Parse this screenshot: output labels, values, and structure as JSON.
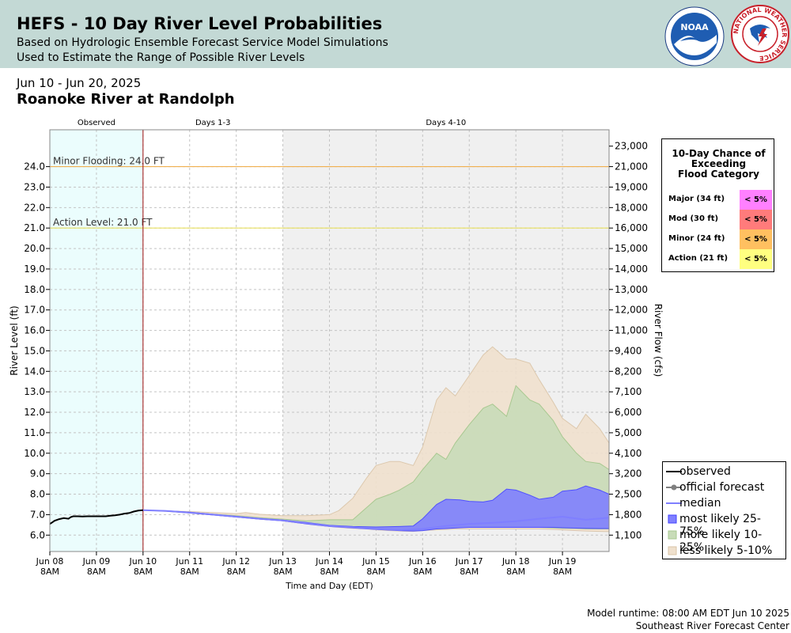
{
  "header": {
    "title": "HEFS - 10 Day River Level Probabilities",
    "subtitle1": "Based on Hydrologic Ensemble Forecast Service Model Simulations",
    "subtitle2": "Used to Estimate the Range of Possible River Levels",
    "noaa_logo_text": "NOAA",
    "nws_logo_text": "NATIONAL WEATHER SERVICE"
  },
  "date_range": "Jun 10 - Jun 20, 2025",
  "station": "Roanoke River at Randolph",
  "footer": {
    "runtime": "Model runtime: 08:00 AM EDT Jun 10 2025",
    "center": "Southeast River Forecast Center"
  },
  "flood_box": {
    "title_lines": [
      "10-Day Chance of",
      "Exceeding",
      "Flood Category"
    ],
    "rows": [
      {
        "label": "Major (34 ft)",
        "value": "< 5%",
        "color": "#ff80ff"
      },
      {
        "label": "Mod (30 ft)",
        "value": "< 5%",
        "color": "#ff7b7b"
      },
      {
        "label": "Minor (24 ft)",
        "value": "< 5%",
        "color": "#ffc060"
      },
      {
        "label": "Action (21 ft)",
        "value": "< 5%",
        "color": "#ffff80"
      }
    ]
  },
  "legend": {
    "items": [
      {
        "key": "observed",
        "label": "observed",
        "kind": "line",
        "color": "#000000"
      },
      {
        "key": "official",
        "label": "official forecast",
        "kind": "dotline",
        "color": "#808080"
      },
      {
        "key": "median",
        "label": "median",
        "kind": "line",
        "color": "#7f7fff"
      },
      {
        "key": "band_25_75",
        "label": "most likely 25-75%",
        "kind": "box",
        "color": "#8080ff",
        "border": "#4040ff"
      },
      {
        "key": "band_10_25",
        "label": "more likely 10-25%",
        "kind": "box",
        "color": "#c8dcb8",
        "border": "#a8c890"
      },
      {
        "key": "band_5_10",
        "label": "less likely 5-10%",
        "kind": "box",
        "color": "#efe0cd",
        "border": "#d8c4a8"
      }
    ]
  },
  "chart_data": {
    "type": "area",
    "xlabel": "Time and Day (EDT)",
    "ylabel": "River Level (ft)",
    "ylabel2": "River Flow (cfs)",
    "ylim": [
      5.2,
      25.8
    ],
    "xlim": [
      0,
      12
    ],
    "yticks": [
      6.0,
      7.0,
      8.0,
      9.0,
      10.0,
      11.0,
      12.0,
      13.0,
      14.0,
      15.0,
      16.0,
      17.0,
      18.0,
      19.0,
      20.0,
      21.0,
      22.0,
      23.0,
      24.0
    ],
    "ytick_labels": [
      "6.0",
      "7.0",
      "8.0",
      "9.0",
      "10.0",
      "11.0",
      "12.0",
      "13.0",
      "14.0",
      "15.0",
      "16.0",
      "17.0",
      "18.0",
      "19.0",
      "20.0",
      "21.0",
      "22.0",
      "23.0",
      "24.0"
    ],
    "flow_ticks": [
      {
        "stage": 6.0,
        "label": "1,100"
      },
      {
        "stage": 7.0,
        "label": "1,800"
      },
      {
        "stage": 8.0,
        "label": "2,500"
      },
      {
        "stage": 9.0,
        "label": "3,200"
      },
      {
        "stage": 10.0,
        "label": "4,100"
      },
      {
        "stage": 11.0,
        "label": "5,000"
      },
      {
        "stage": 12.0,
        "label": "6,000"
      },
      {
        "stage": 13.0,
        "label": "7,100"
      },
      {
        "stage": 14.0,
        "label": "8,200"
      },
      {
        "stage": 15.0,
        "label": "9,400"
      },
      {
        "stage": 16.0,
        "label": "11,000"
      },
      {
        "stage": 17.0,
        "label": "12,000"
      },
      {
        "stage": 18.0,
        "label": "13,000"
      },
      {
        "stage": 19.0,
        "label": "14,000"
      },
      {
        "stage": 20.0,
        "label": "15,000"
      },
      {
        "stage": 21.0,
        "label": "16,000"
      },
      {
        "stage": 22.0,
        "label": "18,000"
      },
      {
        "stage": 23.0,
        "label": "19,000"
      },
      {
        "stage": 24.0,
        "label": "21,000"
      },
      {
        "stage": 25.0,
        "label": "23,000"
      }
    ],
    "xticks": [
      {
        "x": 0,
        "day": "Jun 08",
        "time": "8AM"
      },
      {
        "x": 1,
        "day": "Jun 09",
        "time": "8AM"
      },
      {
        "x": 2,
        "day": "Jun 10",
        "time": "8AM"
      },
      {
        "x": 3,
        "day": "Jun 11",
        "time": "8AM"
      },
      {
        "x": 4,
        "day": "Jun 12",
        "time": "8AM"
      },
      {
        "x": 5,
        "day": "Jun 13",
        "time": "8AM"
      },
      {
        "x": 6,
        "day": "Jun 14",
        "time": "8AM"
      },
      {
        "x": 7,
        "day": "Jun 15",
        "time": "8AM"
      },
      {
        "x": 8,
        "day": "Jun 16",
        "time": "8AM"
      },
      {
        "x": 9,
        "day": "Jun 17",
        "time": "8AM"
      },
      {
        "x": 10,
        "day": "Jun 18",
        "time": "8AM"
      },
      {
        "x": 11,
        "day": "Jun 19",
        "time": "8AM"
      }
    ],
    "regions": [
      {
        "label": "Observed",
        "x0": 0,
        "x1": 2,
        "color": "#ebfdfd"
      },
      {
        "label": "Days 1-3",
        "x0": 2,
        "x1": 5,
        "color": "#ffffff"
      },
      {
        "label": "Days 4-10",
        "x0": 5,
        "x1": 12,
        "color": "#f0f0f0"
      }
    ],
    "now_x": 2,
    "thresholds": [
      {
        "label": "Minor Flooding: 24.0 FT",
        "value": 24.0,
        "color": "#f0b050"
      },
      {
        "label": "Action Level: 21.0 FT",
        "value": 21.0,
        "color": "#e8e060"
      }
    ],
    "observed": {
      "x": [
        0,
        0.05,
        0.1,
        0.2,
        0.3,
        0.4,
        0.45,
        0.5,
        0.6,
        0.7,
        0.8,
        0.9,
        1.0,
        1.1,
        1.2,
        1.3,
        1.4,
        1.5,
        1.6,
        1.7,
        1.8,
        1.9,
        2.0
      ],
      "y": [
        6.55,
        6.62,
        6.7,
        6.78,
        6.83,
        6.8,
        6.88,
        6.92,
        6.92,
        6.91,
        6.92,
        6.92,
        6.92,
        6.92,
        6.92,
        6.95,
        6.97,
        7.0,
        7.05,
        7.08,
        7.15,
        7.2,
        7.22
      ]
    },
    "median": {
      "x": [
        2.0,
        2.5,
        3.0,
        3.5,
        4.0,
        4.5,
        5.0,
        5.5,
        6.0,
        6.5,
        7.0,
        7.5,
        8.0,
        8.5,
        9.0,
        9.5,
        10.0,
        10.5,
        11.0,
        11.5,
        12.0
      ],
      "y": [
        7.22,
        7.18,
        7.1,
        7.0,
        6.9,
        6.8,
        6.72,
        6.58,
        6.45,
        6.38,
        6.3,
        6.25,
        6.3,
        6.45,
        6.55,
        6.6,
        6.68,
        6.8,
        6.9,
        6.75,
        6.85
      ]
    },
    "series": [
      {
        "name": "less likely 5-10%",
        "x": [
          2.0,
          2.5,
          3.0,
          3.5,
          4.0,
          4.2,
          4.5,
          5.0,
          5.5,
          6.0,
          6.2,
          6.5,
          6.8,
          7.0,
          7.3,
          7.5,
          7.8,
          8.0,
          8.3,
          8.5,
          8.7,
          9.0,
          9.3,
          9.5,
          9.8,
          10.0,
          10.3,
          10.5,
          10.8,
          11.0,
          11.3,
          11.5,
          11.8,
          12.0
        ],
        "upper": [
          7.22,
          7.18,
          7.15,
          7.1,
          7.05,
          7.1,
          7.02,
          6.95,
          6.95,
          7.0,
          7.2,
          7.8,
          8.8,
          9.4,
          9.6,
          9.6,
          9.4,
          10.3,
          12.6,
          13.2,
          12.8,
          13.8,
          14.8,
          15.2,
          14.6,
          14.6,
          14.4,
          13.6,
          12.5,
          11.7,
          11.2,
          11.9,
          11.2,
          10.5
        ],
        "lower": [
          7.22,
          7.16,
          7.08,
          6.98,
          6.88,
          6.85,
          6.78,
          6.7,
          6.55,
          6.42,
          6.38,
          6.33,
          6.3,
          6.26,
          6.22,
          6.2,
          6.18,
          6.22,
          6.26,
          6.28,
          6.3,
          6.3,
          6.3,
          6.3,
          6.3,
          6.3,
          6.3,
          6.3,
          6.28,
          6.25,
          6.22,
          6.2,
          6.18,
          6.17
        ],
        "color": "#efe0cd",
        "border": "#dcc8ad"
      },
      {
        "name": "more likely 10-25%",
        "x": [
          2.0,
          2.5,
          3.0,
          3.5,
          4.0,
          4.5,
          5.0,
          5.5,
          6.0,
          6.5,
          7.0,
          7.3,
          7.5,
          7.8,
          8.0,
          8.3,
          8.5,
          8.7,
          9.0,
          9.3,
          9.5,
          9.8,
          10.0,
          10.3,
          10.5,
          10.8,
          11.0,
          11.3,
          11.5,
          11.8,
          12.0
        ],
        "upper": [
          7.22,
          7.17,
          7.1,
          7.03,
          6.95,
          6.85,
          6.78,
          6.7,
          6.75,
          6.75,
          7.75,
          8.0,
          8.2,
          8.6,
          9.2,
          10.0,
          9.7,
          10.5,
          11.4,
          12.2,
          12.4,
          11.8,
          13.3,
          12.6,
          12.4,
          11.6,
          10.8,
          10.0,
          9.6,
          9.5,
          9.2
        ],
        "lower": [
          7.22,
          7.17,
          7.09,
          7.0,
          6.9,
          6.8,
          6.72,
          6.58,
          6.45,
          6.38,
          6.3,
          6.26,
          6.24,
          6.22,
          6.25,
          6.32,
          6.35,
          6.38,
          6.38,
          6.38,
          6.38,
          6.38,
          6.38,
          6.38,
          6.38,
          6.35,
          6.33,
          6.32,
          6.3,
          6.3,
          6.3
        ],
        "color": "#c8dcb8",
        "border": "#a8c890"
      },
      {
        "name": "most likely 25-75%",
        "x": [
          2.0,
          2.5,
          3.0,
          3.5,
          4.0,
          4.5,
          5.0,
          5.5,
          6.0,
          6.5,
          7.0,
          7.5,
          7.8,
          8.0,
          8.3,
          8.5,
          8.8,
          9.0,
          9.3,
          9.5,
          9.8,
          10.0,
          10.3,
          10.5,
          10.8,
          11.0,
          11.3,
          11.5,
          11.8,
          12.0
        ],
        "upper": [
          7.22,
          7.19,
          7.12,
          7.02,
          6.92,
          6.82,
          6.74,
          6.62,
          6.48,
          6.42,
          6.4,
          6.42,
          6.45,
          6.8,
          7.5,
          7.75,
          7.72,
          7.65,
          7.62,
          7.7,
          8.25,
          8.2,
          7.95,
          7.75,
          7.85,
          8.15,
          8.22,
          8.4,
          8.2,
          8.0
        ],
        "lower": [
          7.22,
          7.17,
          7.08,
          6.98,
          6.88,
          6.78,
          6.7,
          6.55,
          6.42,
          6.35,
          6.28,
          6.22,
          6.2,
          6.22,
          6.3,
          6.32,
          6.36,
          6.38,
          6.38,
          6.38,
          6.38,
          6.38,
          6.38,
          6.38,
          6.38,
          6.36,
          6.34,
          6.33,
          6.32,
          6.32
        ],
        "color": "#8080ff",
        "border": "#5050ff"
      }
    ]
  }
}
